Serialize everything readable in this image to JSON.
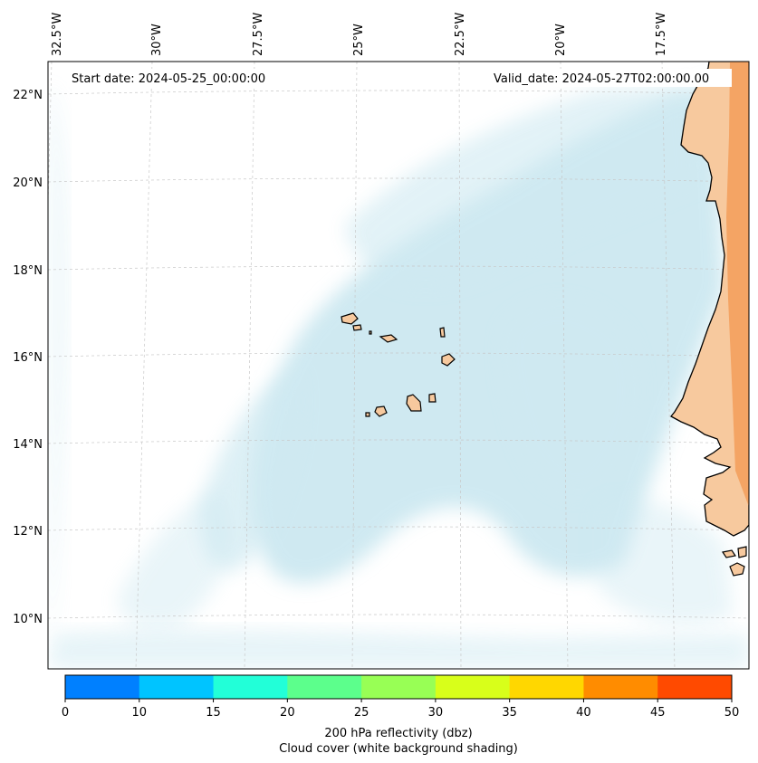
{
  "map": {
    "start_date_label": "Start date: 2024-05-25_00:00:00",
    "valid_date_label": "Valid_date: 2024-05-27T02:00:00.00",
    "lon_labels": [
      "32.5°W",
      "30°W",
      "27.5°W",
      "25°W",
      "22.5°W",
      "20°W",
      "17.5°W"
    ],
    "lat_labels": [
      "22°N",
      "20°N",
      "18°N",
      "16°N",
      "14°N",
      "12°N",
      "10°N"
    ],
    "colors": {
      "land": "#f7c99e",
      "land_inland": "#f4a464",
      "cloud": "#a8d8e6",
      "grid": "#c8c8c8",
      "coast": "#000000"
    }
  },
  "colorbar": {
    "ticks": [
      "0",
      "10",
      "15",
      "20",
      "25",
      "30",
      "35",
      "40",
      "45",
      "50"
    ],
    "colors": [
      "#0080ff",
      "#00c4ff",
      "#22ffd8",
      "#5cff8c",
      "#98ff55",
      "#d8ff1a",
      "#ffd700",
      "#ff8c00",
      "#ff4a00"
    ],
    "title_line1": "200 hPa reflectivity (dbz)",
    "title_line2": "Cloud cover (white background shading)"
  }
}
